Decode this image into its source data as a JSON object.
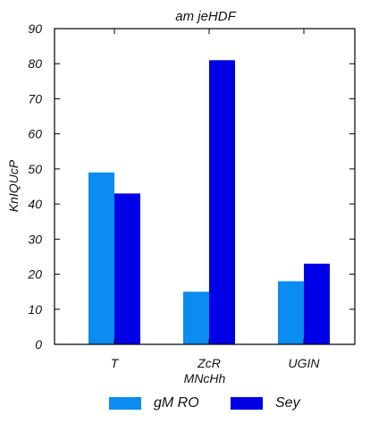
{
  "chart_data": {
    "type": "bar",
    "title": "am jeHDF",
    "xlabel": "MNcHh",
    "ylabel": "KnIQUcP",
    "categories": [
      "T",
      "ZcR",
      "UGIN"
    ],
    "series": [
      {
        "name": "gM RO",
        "values": [
          49,
          15,
          18
        ],
        "color": "#0a8cf0"
      },
      {
        "name": "Sey",
        "values": [
          43,
          81,
          23
        ],
        "color": "#0000e6"
      }
    ],
    "ylim": [
      0,
      90
    ],
    "yticks": [
      0,
      10,
      20,
      30,
      40,
      50,
      60,
      70,
      80,
      90
    ],
    "grid": false,
    "legend_position": "bottom"
  }
}
